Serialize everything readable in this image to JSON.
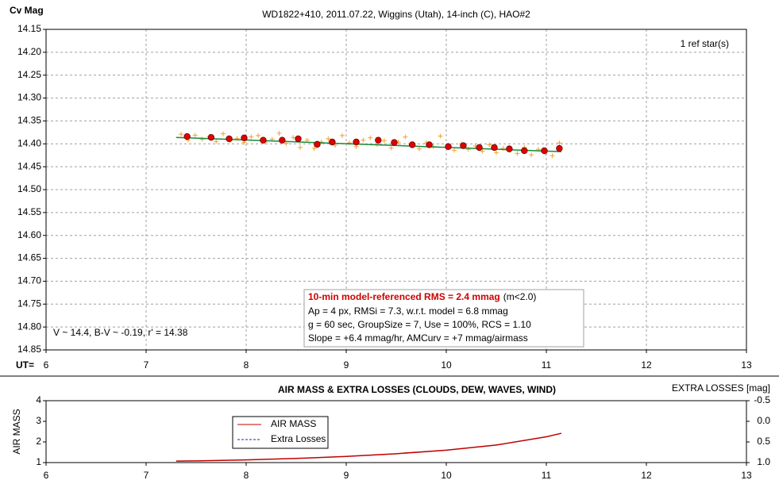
{
  "chart_data": [
    {
      "type": "scatter",
      "title": "WD1822+410, 2011.07.22, Wiggins (Utah), 14-inch (C), HAO#2",
      "y_label": "Cv Mag",
      "x_label": "UT=",
      "annotations": [
        "1 ref star(s)",
        "V ~ 14.4, B-V ~ -0.19, r' = 14.38"
      ],
      "info_box": {
        "headline": "10-min model-referenced RMS = 2.4 mmag",
        "headline_note": "(m<2.0)",
        "lines": [
          "Ap = 4 px, RMSi = 7.3, w.r.t. model = 6.8 mmag",
          "g = 60 sec, GroupSize = 7, Use = 100%, RCS = 1.10",
          "Slope = +6.4 mmag/hr, AMCurv = +7 mmag/airmass"
        ]
      },
      "xlim": [
        6,
        13
      ],
      "xticks": [
        6,
        7,
        8,
        9,
        10,
        11,
        12,
        13
      ],
      "ylim": [
        14.15,
        14.85
      ],
      "invert_y": true,
      "yticks": [
        14.15,
        {
          "value": 14.2,
          "label": "14.20"
        },
        14.25,
        {
          "value": 14.3,
          "label": "14.30"
        },
        14.35,
        {
          "value": 14.4,
          "label": "14.40"
        },
        14.45,
        {
          "value": 14.5,
          "label": "14.50"
        },
        14.55,
        {
          "value": 14.6,
          "label": "14.60"
        },
        14.65,
        {
          "value": 14.7,
          "label": "14.70"
        },
        14.75,
        {
          "value": 14.8,
          "label": "14.80"
        },
        14.85
      ],
      "grid": true,
      "series": [
        {
          "marker": "plus",
          "color": "#f0a030",
          "x": [
            7.35,
            7.42,
            7.49,
            7.56,
            7.63,
            7.7,
            7.77,
            7.84,
            7.91,
            7.98,
            8.05,
            8.12,
            8.19,
            8.26,
            8.33,
            8.4,
            8.47,
            8.54,
            8.61,
            8.68,
            8.75,
            8.82,
            8.89,
            8.96,
            9.03,
            9.1,
            9.17,
            9.24,
            9.31,
            9.38,
            9.45,
            9.52,
            9.59,
            9.66,
            9.73,
            9.8,
            9.87,
            9.94,
            10.01,
            10.08,
            10.15,
            10.22,
            10.29,
            10.36,
            10.43,
            10.5,
            10.57,
            10.64,
            10.71,
            10.78,
            10.85,
            10.92,
            10.99,
            11.06,
            11.13
          ],
          "values": [
            14.379,
            14.392,
            14.381,
            14.39,
            14.384,
            14.395,
            14.378,
            14.393,
            14.388,
            14.397,
            14.385,
            14.382,
            14.396,
            14.39,
            14.377,
            14.399,
            14.386,
            14.408,
            14.392,
            14.41,
            14.396,
            14.389,
            14.403,
            14.382,
            14.398,
            14.406,
            14.392,
            14.387,
            14.401,
            14.393,
            14.409,
            14.396,
            14.385,
            14.404,
            14.411,
            14.398,
            14.406,
            14.383,
            14.408,
            14.414,
            14.4,
            14.412,
            14.405,
            14.416,
            14.402,
            14.419,
            14.41,
            14.414,
            14.421,
            14.408,
            14.424,
            14.412,
            14.42,
            14.426,
            14.398
          ]
        },
        {
          "marker": "line",
          "color": "#1a8a3a",
          "x": [
            7.3,
            11.15
          ],
          "values": [
            14.386,
            14.417
          ]
        },
        {
          "marker": "circle",
          "color": "#e00000",
          "x": [
            7.41,
            7.65,
            7.83,
            7.98,
            8.17,
            8.36,
            8.52,
            8.71,
            8.86,
            9.1,
            9.32,
            9.48,
            9.66,
            9.83,
            10.02,
            10.17,
            10.33,
            10.48,
            10.63,
            10.78,
            10.98,
            11.13
          ],
          "values": [
            14.384,
            14.386,
            14.389,
            14.387,
            14.392,
            14.392,
            14.389,
            14.401,
            14.396,
            14.396,
            14.392,
            14.397,
            14.402,
            14.402,
            14.406,
            14.404,
            14.408,
            14.408,
            14.411,
            14.415,
            14.415,
            14.41
          ]
        }
      ]
    },
    {
      "type": "line",
      "title": "AIR MASS & EXTRA LOSSES (CLOUDS, DEW, WAVES, WIND)",
      "y_label": "AIR MASS",
      "y2_label": "EXTRA LOSSES [mag]",
      "xlim": [
        6,
        13
      ],
      "xticks": [
        6,
        7,
        8,
        9,
        10,
        11,
        12,
        13
      ],
      "ylim": [
        1,
        4
      ],
      "yticks": [
        1,
        2,
        3,
        4
      ],
      "y2lim": [
        -0.5,
        1.0
      ],
      "invert_y2": true,
      "y2ticks": [
        -0.5,
        {
          "value": 0,
          "label": "0.0"
        },
        0.5,
        {
          "value": 1,
          "label": "1.0"
        }
      ],
      "grid": false,
      "legend": "left",
      "series": [
        {
          "name": "AIR MASS",
          "color": "#c00000",
          "dash": false,
          "x": [
            7.3,
            7.6,
            8.0,
            8.5,
            9.0,
            9.5,
            10.0,
            10.5,
            11.0,
            11.15
          ],
          "values": [
            1.07,
            1.09,
            1.13,
            1.2,
            1.3,
            1.43,
            1.6,
            1.85,
            2.25,
            2.42
          ]
        },
        {
          "name": "Extra Losses",
          "color": "#2020c0",
          "dash": true,
          "axis": "y2",
          "x": [],
          "values": []
        }
      ]
    }
  ]
}
